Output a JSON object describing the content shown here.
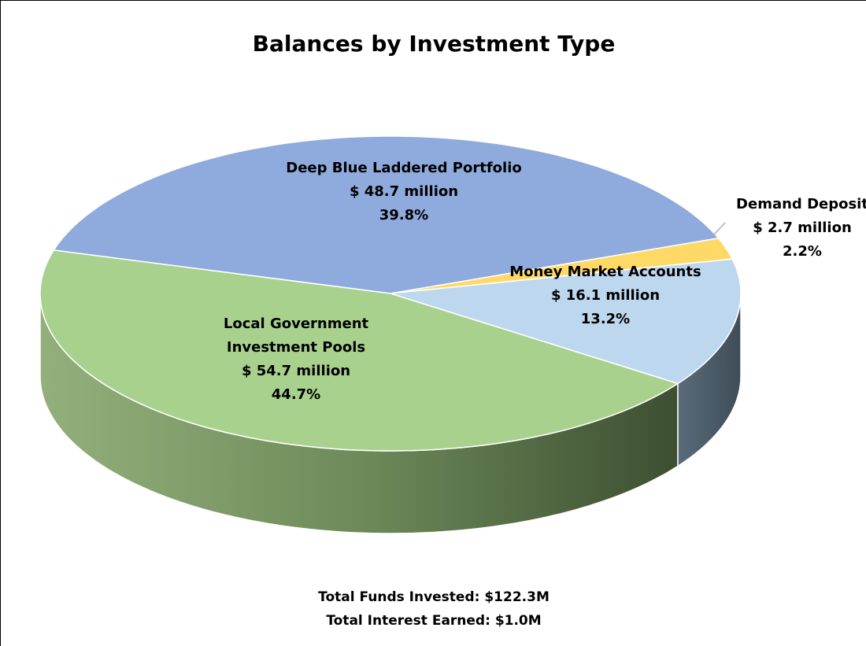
{
  "chart_data": {
    "type": "pie",
    "title": "Balances by Investment Type",
    "categories": [
      "Deep Blue Laddered Portfolio",
      "Demand Deposit",
      "Money Market Accounts",
      "Local Government Investment Pools"
    ],
    "values": [
      39.8,
      2.2,
      13.2,
      44.7
    ],
    "value_labels": [
      "39.8%",
      "2.2%",
      "13.2%",
      "44.7%"
    ],
    "amount_labels": [
      "$ 48.7 million",
      "$ 2.7 million",
      "$ 16.1 million",
      "$ 54.7 million"
    ],
    "colors": [
      "#8faadc",
      "#ffd966",
      "#bdd7ee",
      "#a9d18e"
    ],
    "notes": [
      "Total Funds Invested: $122.3M",
      "Total Interest Earned: $1.0M"
    ]
  }
}
